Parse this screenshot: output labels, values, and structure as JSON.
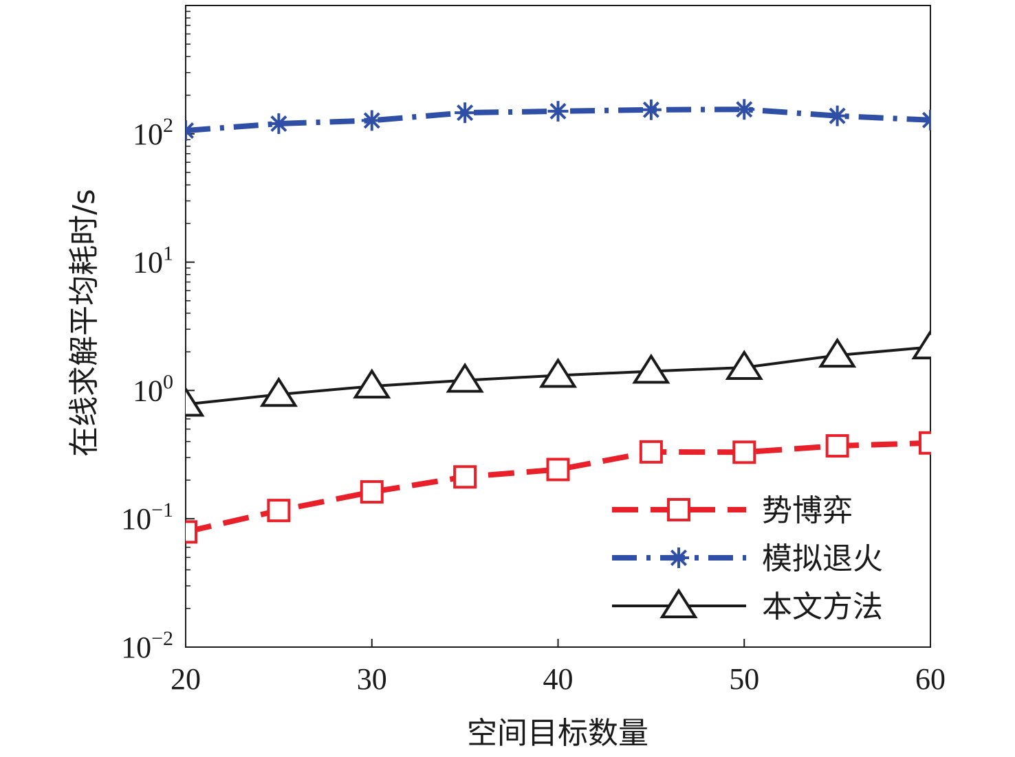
{
  "chart_data": {
    "type": "line",
    "xlabel": "空间目标数量",
    "ylabel": "在线求解平均耗时/s",
    "x": [
      20,
      25,
      30,
      35,
      40,
      45,
      50,
      55,
      60
    ],
    "xlim": [
      20,
      60
    ],
    "x_ticks": [
      "20",
      "30",
      "40",
      "50",
      "60"
    ],
    "ylim": [
      0.01,
      1000
    ],
    "y_scale": "log",
    "y_ticks": [
      {
        "base": "10",
        "exp": "−2"
      },
      {
        "base": "10",
        "exp": "−1"
      },
      {
        "base": "10",
        "exp": "0"
      },
      {
        "base": "10",
        "exp": "1"
      },
      {
        "base": "10",
        "exp": "2"
      }
    ],
    "grid": false,
    "legend_position": "bottom-right",
    "series": [
      {
        "name": "势博弈",
        "color": "#e8202a",
        "line_style": "dashed",
        "marker": "square",
        "values": [
          0.079,
          0.116,
          0.162,
          0.212,
          0.242,
          0.332,
          0.33,
          0.37,
          0.39
        ]
      },
      {
        "name": "模拟退火",
        "color": "#2e4fa5",
        "line_style": "dash-dot",
        "marker": "asterisk",
        "values": [
          106,
          120,
          127,
          146,
          150,
          154,
          155,
          138,
          128
        ]
      },
      {
        "name": "本文方法",
        "color": "#1a1a1a",
        "line_style": "solid",
        "marker": "triangle",
        "values": [
          0.78,
          0.93,
          1.08,
          1.2,
          1.31,
          1.41,
          1.51,
          1.88,
          2.18
        ]
      }
    ]
  }
}
